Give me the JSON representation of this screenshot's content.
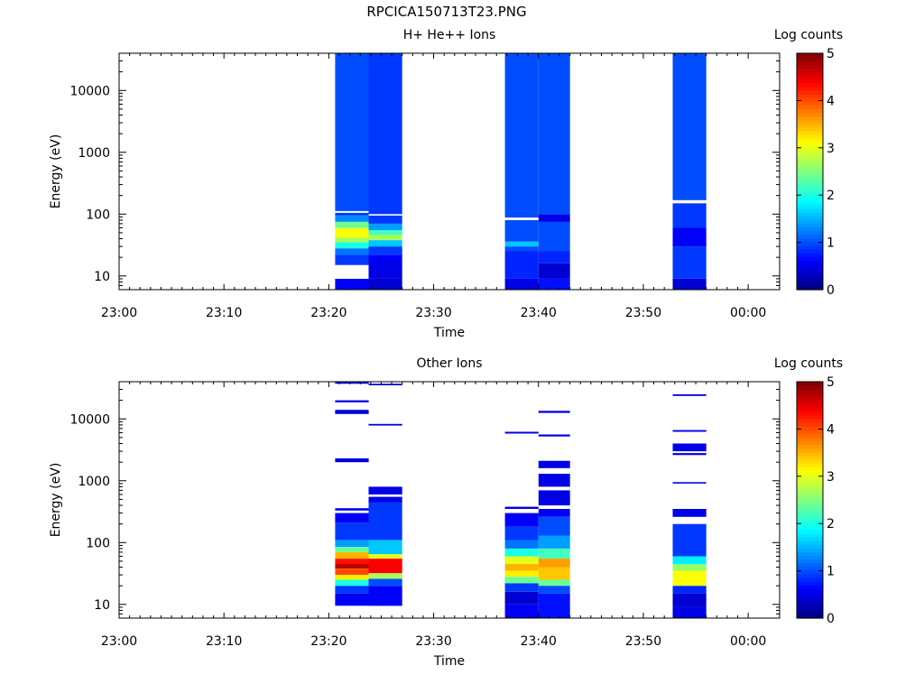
{
  "title": "RPCICA150713T23.PNG",
  "chart_data": [
    {
      "type": "heatmap",
      "title": "H+ He++ Ions",
      "xlabel": "Time",
      "ylabel": "Energy (eV)",
      "x_ticks": [
        "23:00",
        "23:10",
        "23:20",
        "23:30",
        "23:40",
        "23:50",
        "00:00"
      ],
      "x_range": [
        "23:00",
        "00:03"
      ],
      "y_scale": "log",
      "y_range": [
        6,
        40000
      ],
      "y_ticks": [
        "10",
        "100",
        "1000",
        "10000"
      ],
      "colorbar": {
        "label": "Log counts",
        "range": [
          0,
          5
        ],
        "ticks": [
          "0",
          "1",
          "2",
          "3",
          "4",
          "5"
        ]
      },
      "columns": [
        {
          "start": "23:20.6",
          "end": "23:23.8",
          "bands": [
            {
              "emin": 6,
              "emax": 9,
              "log_counts": 0.6
            },
            {
              "emin": 9,
              "emax": 15,
              "gap": true
            },
            {
              "emin": 15,
              "emax": 22,
              "log_counts": 0.9
            },
            {
              "emin": 22,
              "emax": 28,
              "log_counts": 1.2
            },
            {
              "emin": 28,
              "emax": 35,
              "log_counts": 2.0
            },
            {
              "emin": 35,
              "emax": 42,
              "log_counts": 2.7
            },
            {
              "emin": 42,
              "emax": 60,
              "log_counts": 3.1
            },
            {
              "emin": 60,
              "emax": 75,
              "log_counts": 2.4
            },
            {
              "emin": 75,
              "emax": 95,
              "log_counts": 1.3
            },
            {
              "emin": 95,
              "emax": 105,
              "log_counts": 0.9
            },
            {
              "emin": 105,
              "emax": 112,
              "gap": true
            },
            {
              "emin": 112,
              "emax": 40000,
              "log_counts": 1.0
            }
          ]
        },
        {
          "start": "23:23.8",
          "end": "23:27.0",
          "bands": [
            {
              "emin": 6,
              "emax": 9,
              "log_counts": 0.4
            },
            {
              "emin": 9,
              "emax": 17,
              "log_counts": 0.5
            },
            {
              "emin": 17,
              "emax": 22,
              "log_counts": 0.6
            },
            {
              "emin": 22,
              "emax": 30,
              "log_counts": 0.9
            },
            {
              "emin": 30,
              "emax": 38,
              "log_counts": 1.6
            },
            {
              "emin": 38,
              "emax": 46,
              "log_counts": 2.7
            },
            {
              "emin": 46,
              "emax": 55,
              "log_counts": 2.2
            },
            {
              "emin": 55,
              "emax": 70,
              "log_counts": 1.4
            },
            {
              "emin": 70,
              "emax": 95,
              "log_counts": 0.9
            },
            {
              "emin": 95,
              "emax": 100,
              "gap": true
            },
            {
              "emin": 100,
              "emax": 40000,
              "log_counts": 0.9
            }
          ]
        },
        {
          "start": "23:36.8",
          "end": "23:40.0",
          "bands": [
            {
              "emin": 6,
              "emax": 9,
              "log_counts": 0.5
            },
            {
              "emin": 9,
              "emax": 25,
              "log_counts": 0.8
            },
            {
              "emin": 25,
              "emax": 30,
              "log_counts": 1.0
            },
            {
              "emin": 30,
              "emax": 36,
              "log_counts": 1.6
            },
            {
              "emin": 36,
              "emax": 80,
              "log_counts": 1.0
            },
            {
              "emin": 80,
              "emax": 88,
              "gap": true
            },
            {
              "emin": 88,
              "emax": 40000,
              "log_counts": 1.0
            }
          ]
        },
        {
          "start": "23:40.0",
          "end": "23:43.0",
          "bands": [
            {
              "emin": 6,
              "emax": 9,
              "log_counts": 0.7
            },
            {
              "emin": 9,
              "emax": 16,
              "log_counts": 0.4
            },
            {
              "emin": 16,
              "emax": 25,
              "log_counts": 0.8
            },
            {
              "emin": 25,
              "emax": 75,
              "log_counts": 1.0
            },
            {
              "emin": 75,
              "emax": 100,
              "log_counts": 0.5
            },
            {
              "emin": 100,
              "emax": 40000,
              "log_counts": 1.0
            }
          ]
        },
        {
          "start": "23:52.8",
          "end": "23:56.0",
          "bands": [
            {
              "emin": 6,
              "emax": 9,
              "log_counts": 0.4
            },
            {
              "emin": 9,
              "emax": 30,
              "log_counts": 0.9
            },
            {
              "emin": 30,
              "emax": 60,
              "log_counts": 0.6
            },
            {
              "emin": 60,
              "emax": 150,
              "log_counts": 0.9
            },
            {
              "emin": 150,
              "emax": 168,
              "gap": true
            },
            {
              "emin": 168,
              "emax": 40000,
              "log_counts": 1.0
            }
          ]
        }
      ]
    },
    {
      "type": "heatmap",
      "title": "Other Ions",
      "xlabel": "Time",
      "ylabel": "Energy (eV)",
      "x_ticks": [
        "23:00",
        "23:10",
        "23:20",
        "23:30",
        "23:40",
        "23:50",
        "00:00"
      ],
      "x_range": [
        "23:00",
        "00:03"
      ],
      "y_scale": "log",
      "y_range": [
        6,
        40000
      ],
      "y_ticks": [
        "10",
        "100",
        "1000",
        "10000"
      ],
      "colorbar": {
        "label": "Log counts",
        "range": [
          0,
          5
        ],
        "ticks": [
          "0",
          "1",
          "2",
          "3",
          "4",
          "5"
        ]
      },
      "columns": [
        {
          "start": "23:20.6",
          "end": "23:23.8",
          "bands": [
            {
              "emin": 9.5,
              "emax": 15,
              "log_counts": 0.6
            },
            {
              "emin": 15,
              "emax": 20,
              "log_counts": 0.9
            },
            {
              "emin": 20,
              "emax": 25,
              "log_counts": 2.0
            },
            {
              "emin": 25,
              "emax": 30,
              "log_counts": 3.2
            },
            {
              "emin": 30,
              "emax": 38,
              "log_counts": 4.0
            },
            {
              "emin": 38,
              "emax": 45,
              "log_counts": 4.7
            },
            {
              "emin": 45,
              "emax": 55,
              "log_counts": 4.3
            },
            {
              "emin": 55,
              "emax": 70,
              "log_counts": 3.5
            },
            {
              "emin": 70,
              "emax": 85,
              "log_counts": 2.4
            },
            {
              "emin": 85,
              "emax": 110,
              "log_counts": 1.4
            },
            {
              "emin": 110,
              "emax": 210,
              "log_counts": 0.9
            },
            {
              "emin": 210,
              "emax": 300,
              "log_counts": 0.6
            },
            {
              "emin": 330,
              "emax": 360,
              "log_counts": 0.6
            },
            {
              "emin": 2000,
              "emax": 2300,
              "log_counts": 0.5
            },
            {
              "emin": 12000,
              "emax": 14000,
              "log_counts": 0.5
            },
            {
              "emin": 18500,
              "emax": 20000,
              "log_counts": 0.5
            },
            {
              "emin": 37000,
              "emax": 40000,
              "log_counts": 0.5
            }
          ]
        },
        {
          "start": "23:23.8",
          "end": "23:27.0",
          "bands": [
            {
              "emin": 9.5,
              "emax": 20,
              "log_counts": 0.6
            },
            {
              "emin": 20,
              "emax": 26,
              "log_counts": 1.0
            },
            {
              "emin": 26,
              "emax": 32,
              "log_counts": 2.7
            },
            {
              "emin": 32,
              "emax": 55,
              "log_counts": 4.4
            },
            {
              "emin": 55,
              "emax": 65,
              "log_counts": 3.0
            },
            {
              "emin": 65,
              "emax": 110,
              "log_counts": 1.6
            },
            {
              "emin": 110,
              "emax": 450,
              "log_counts": 0.9
            },
            {
              "emin": 450,
              "emax": 550,
              "log_counts": 0.5
            },
            {
              "emin": 600,
              "emax": 800,
              "log_counts": 0.5
            },
            {
              "emin": 7800,
              "emax": 8300,
              "log_counts": 0.5
            },
            {
              "emin": 35000,
              "emax": 37000,
              "log_counts": 0.5
            }
          ]
        },
        {
          "start": "23:36.8",
          "end": "23:40.0",
          "bands": [
            {
              "emin": 6,
              "emax": 10,
              "log_counts": 0.6
            },
            {
              "emin": 10,
              "emax": 16,
              "log_counts": 0.4
            },
            {
              "emin": 16,
              "emax": 22,
              "log_counts": 0.9
            },
            {
              "emin": 22,
              "emax": 28,
              "log_counts": 2.4
            },
            {
              "emin": 28,
              "emax": 35,
              "log_counts": 3.2
            },
            {
              "emin": 35,
              "emax": 45,
              "log_counts": 3.5
            },
            {
              "emin": 45,
              "emax": 60,
              "log_counts": 3.0
            },
            {
              "emin": 60,
              "emax": 80,
              "log_counts": 2.0
            },
            {
              "emin": 80,
              "emax": 110,
              "log_counts": 1.2
            },
            {
              "emin": 110,
              "emax": 180,
              "log_counts": 0.9
            },
            {
              "emin": 180,
              "emax": 300,
              "log_counts": 0.6
            },
            {
              "emin": 350,
              "emax": 380,
              "log_counts": 0.5
            },
            {
              "emin": 5800,
              "emax": 6200,
              "log_counts": 0.5
            }
          ]
        },
        {
          "start": "23:40.0",
          "end": "23:43.0",
          "bands": [
            {
              "emin": 6,
              "emax": 15,
              "log_counts": 0.7
            },
            {
              "emin": 15,
              "emax": 20,
              "log_counts": 1.0
            },
            {
              "emin": 20,
              "emax": 25,
              "log_counts": 2.4
            },
            {
              "emin": 25,
              "emax": 40,
              "log_counts": 3.4
            },
            {
              "emin": 40,
              "emax": 55,
              "log_counts": 3.6
            },
            {
              "emin": 55,
              "emax": 80,
              "log_counts": 2.2
            },
            {
              "emin": 80,
              "emax": 130,
              "log_counts": 1.4
            },
            {
              "emin": 130,
              "emax": 260,
              "log_counts": 1.0
            },
            {
              "emin": 260,
              "emax": 350,
              "log_counts": 0.6
            },
            {
              "emin": 400,
              "emax": 700,
              "log_counts": 0.5
            },
            {
              "emin": 800,
              "emax": 1300,
              "log_counts": 0.5
            },
            {
              "emin": 1600,
              "emax": 2100,
              "log_counts": 0.5
            },
            {
              "emin": 5200,
              "emax": 5600,
              "log_counts": 0.5
            },
            {
              "emin": 12500,
              "emax": 13500,
              "log_counts": 0.5
            }
          ]
        },
        {
          "start": "23:52.8",
          "end": "23:56.0",
          "bands": [
            {
              "emin": 6,
              "emax": 9,
              "log_counts": 0.5
            },
            {
              "emin": 9,
              "emax": 15,
              "log_counts": 0.4
            },
            {
              "emin": 15,
              "emax": 20,
              "log_counts": 0.8
            },
            {
              "emin": 20,
              "emax": 35,
              "log_counts": 3.1
            },
            {
              "emin": 35,
              "emax": 45,
              "log_counts": 2.6
            },
            {
              "emin": 45,
              "emax": 60,
              "log_counts": 1.8
            },
            {
              "emin": 60,
              "emax": 200,
              "log_counts": 0.9
            },
            {
              "emin": 260,
              "emax": 350,
              "log_counts": 0.5
            },
            {
              "emin": 900,
              "emax": 950,
              "log_counts": 0.5
            },
            {
              "emin": 2600,
              "emax": 2800,
              "log_counts": 0.5
            },
            {
              "emin": 3000,
              "emax": 4000,
              "log_counts": 0.5
            },
            {
              "emin": 6200,
              "emax": 6600,
              "log_counts": 0.5
            },
            {
              "emin": 23500,
              "emax": 25000,
              "log_counts": 0.5
            }
          ]
        }
      ]
    }
  ]
}
